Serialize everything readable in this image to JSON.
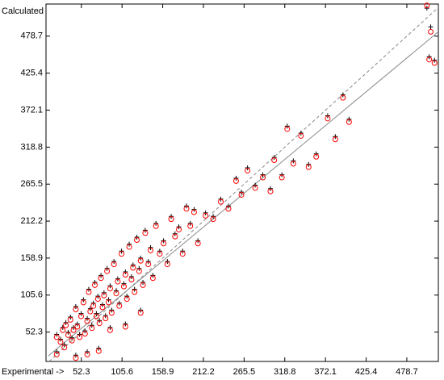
{
  "chart_data": {
    "type": "scatter",
    "x_label": "Experimental ->",
    "y_label": "Calculated",
    "xlim": [
      6,
      520
    ],
    "ylim": [
      10,
      525
    ],
    "xticks": [
      52.3,
      105.6,
      158.9,
      212.2,
      265.5,
      318.8,
      372.1,
      425.4,
      478.7
    ],
    "yticks": [
      52.3,
      105.6,
      158.9,
      212.2,
      265.5,
      318.8,
      372.1,
      425.4,
      478.7
    ],
    "x": [
      20,
      25,
      28,
      30,
      32,
      35,
      38,
      40,
      42,
      45,
      47,
      50,
      52,
      55,
      57,
      60,
      62,
      64,
      66,
      68,
      70,
      72,
      74,
      76,
      78,
      80,
      82,
      84,
      86,
      88,
      90,
      92,
      95,
      98,
      100,
      102,
      105,
      108,
      110,
      112,
      115,
      118,
      120,
      122,
      125,
      128,
      130,
      133,
      136,
      140,
      143,
      146,
      150,
      155,
      160,
      165,
      170,
      175,
      180,
      185,
      190,
      195,
      200,
      205,
      215,
      225,
      235,
      245,
      255,
      262,
      270,
      280,
      290,
      300,
      305,
      315,
      322,
      330,
      340,
      350,
      360,
      375,
      385,
      395,
      403,
      505,
      510,
      508,
      515,
      20,
      45,
      60,
      75,
      90,
      110,
      130
    ],
    "series": [
      {
        "marker": "plus",
        "color": "#000000",
        "values": [
          49,
          42,
          59,
          34,
          66,
          52,
          74,
          44,
          59,
          89,
          64,
          49,
          79,
          99,
          54,
          72,
          114,
          86,
          62,
          94,
          124,
          79,
          104,
          69,
          134,
          92,
          109,
          76,
          144,
          99,
          119,
          84,
          154,
          112,
          129,
          94,
          169,
          122,
          139,
          104,
          179,
          132,
          149,
          114,
          189,
          144,
          159,
          124,
          199,
          154,
          174,
          134,
          209,
          169,
          184,
          154,
          219,
          194,
          204,
          169,
          234,
          209,
          229,
          184,
          224,
          219,
          244,
          234,
          274,
          254,
          289,
          264,
          279,
          259,
          304,
          279,
          349,
          299,
          339,
          294,
          309,
          364,
          334,
          394,
          359,
          519,
          492,
          449,
          444,
          24,
          19,
          24,
          29,
          59,
          64,
          84
        ]
      },
      {
        "marker": "circle",
        "color": "#ff0000",
        "values": [
          45,
          38,
          55,
          30,
          62,
          48,
          70,
          40,
          55,
          85,
          60,
          45,
          75,
          95,
          50,
          68,
          110,
          82,
          58,
          90,
          120,
          75,
          100,
          65,
          130,
          88,
          105,
          72,
          140,
          95,
          115,
          80,
          150,
          108,
          125,
          90,
          165,
          118,
          135,
          100,
          175,
          128,
          145,
          110,
          185,
          140,
          155,
          120,
          195,
          150,
          170,
          130,
          205,
          165,
          180,
          150,
          215,
          190,
          200,
          165,
          230,
          205,
          225,
          180,
          220,
          215,
          240,
          230,
          270,
          250,
          285,
          260,
          275,
          255,
          300,
          275,
          345,
          295,
          335,
          290,
          305,
          360,
          330,
          390,
          355,
          523,
          485,
          445,
          440,
          20,
          15,
          20,
          25,
          55,
          60,
          80
        ]
      }
    ],
    "lines": [
      {
        "style": "dashed",
        "color": "#888888",
        "x": [
          10,
          520
        ],
        "y": [
          10,
          520
        ]
      },
      {
        "style": "solid",
        "color": "#888888",
        "x": [
          9,
          520
        ],
        "y": [
          18,
          485
        ]
      }
    ]
  }
}
